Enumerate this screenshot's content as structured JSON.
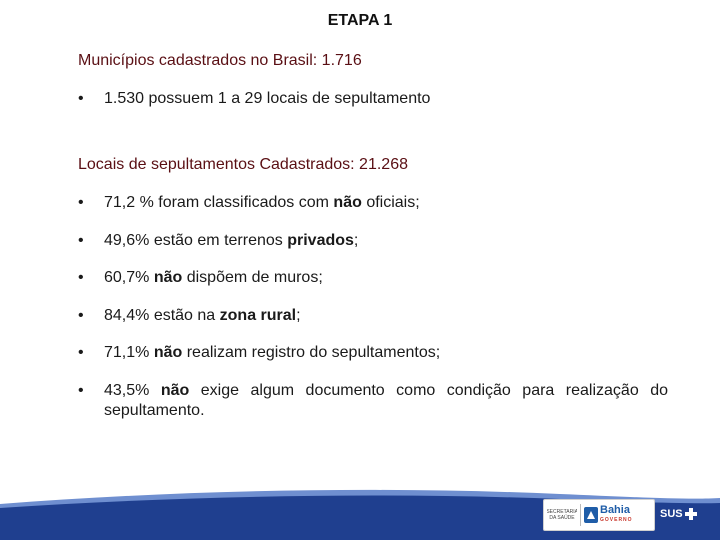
{
  "title": "ETAPA 1",
  "section1": {
    "heading": "Municípios cadastrados no Brasil: 1.716",
    "bullets": [
      {
        "text": "1.530 possuem 1 a 29 locais de sepultamento"
      }
    ]
  },
  "section2": {
    "heading": "Locais de sepultamentos Cadastrados: 21.268",
    "bullets": [
      {
        "a": "71,2 % foram classificados com ",
        "b": "não",
        "c": " oficiais;"
      },
      {
        "a": "49,6% estão em terrenos ",
        "b": "privados",
        "c": ";"
      },
      {
        "a": "60,7% ",
        "b": "não",
        "c": " dispõem de muros;"
      },
      {
        "a": "84,4% estão na ",
        "b": "zona rural",
        "c": ";"
      },
      {
        "a": "71,1% ",
        "b": "não",
        "c": " realizam registro do sepultamentos;"
      },
      {
        "a": "43,5% ",
        "b": "não",
        "c": " exige algum documento como condição para realização do sepultamento."
      }
    ]
  },
  "footer": {
    "seal_text": "SECRETARIA DA SAÚDE",
    "bahia_label": "Bahia",
    "bahia_sub": "GOVERNO",
    "sus_label": "SUS"
  },
  "colors": {
    "heading": "#5a0f14",
    "footer_blue": "#1f3f8f",
    "footer_light": "#6f8fd0"
  }
}
